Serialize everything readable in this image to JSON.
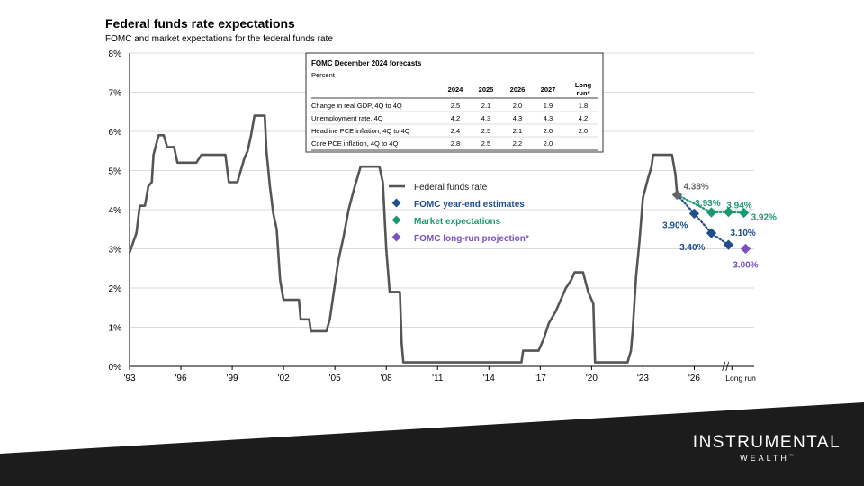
{
  "title": "Federal funds rate expectations",
  "subtitle": "FOMC and market expectations for the federal funds rate",
  "brand": {
    "name": "INSTRUMENTAL",
    "sub": "WEALTH",
    "tm": "™"
  },
  "colors": {
    "fed": "#555555",
    "fomc": "#1f4e8c",
    "market": "#1a9a6c",
    "longrun": "#7a4fc0",
    "footer": "#1c1c1c"
  },
  "chart_data": {
    "type": "line",
    "title": "Federal funds rate expectations",
    "subtitle": "FOMC and market expectations for the federal funds rate",
    "ylim": [
      0,
      8
    ],
    "xlim": [
      1993,
      2029.5
    ],
    "y_ticks": [
      "0%",
      "1%",
      "2%",
      "3%",
      "4%",
      "5%",
      "6%",
      "7%",
      "8%"
    ],
    "x_ticks": [
      {
        "v": 1993,
        "label": "'93"
      },
      {
        "v": 1996,
        "label": "'96"
      },
      {
        "v": 1999,
        "label": "'99"
      },
      {
        "v": 2002,
        "label": "'02"
      },
      {
        "v": 2005,
        "label": "'05"
      },
      {
        "v": 2008,
        "label": "'08"
      },
      {
        "v": 2011,
        "label": "'11"
      },
      {
        "v": 2014,
        "label": "'14"
      },
      {
        "v": 2017,
        "label": "'17"
      },
      {
        "v": 2020,
        "label": "'20"
      },
      {
        "v": 2023,
        "label": "'23"
      },
      {
        "v": 2026,
        "label": "'26"
      },
      {
        "v": 2028.2,
        "label": "Long run"
      }
    ],
    "legend": [
      "Federal funds rate",
      "FOMC year-end estimates",
      "Market expectations",
      "FOMC long-run projection*"
    ],
    "fed_funds": [
      [
        1993.0,
        2.9
      ],
      [
        1993.4,
        3.4
      ],
      [
        1993.6,
        4.1
      ],
      [
        1993.9,
        4.1
      ],
      [
        1994.1,
        4.6
      ],
      [
        1994.3,
        4.7
      ],
      [
        1994.4,
        5.4
      ],
      [
        1994.7,
        5.9
      ],
      [
        1995.0,
        5.9
      ],
      [
        1995.2,
        5.6
      ],
      [
        1995.6,
        5.6
      ],
      [
        1995.8,
        5.2
      ],
      [
        1996.9,
        5.2
      ],
      [
        1997.2,
        5.4
      ],
      [
        1998.6,
        5.4
      ],
      [
        1998.8,
        4.7
      ],
      [
        1999.3,
        4.7
      ],
      [
        1999.5,
        5.0
      ],
      [
        1999.7,
        5.3
      ],
      [
        1999.9,
        5.5
      ],
      [
        2000.1,
        5.9
      ],
      [
        2000.3,
        6.4
      ],
      [
        2000.9,
        6.4
      ],
      [
        2001.0,
        5.5
      ],
      [
        2001.2,
        4.6
      ],
      [
        2001.4,
        3.9
      ],
      [
        2001.6,
        3.5
      ],
      [
        2001.8,
        2.2
      ],
      [
        2002.0,
        1.7
      ],
      [
        2002.9,
        1.7
      ],
      [
        2003.0,
        1.2
      ],
      [
        2003.5,
        1.2
      ],
      [
        2003.6,
        0.9
      ],
      [
        2004.5,
        0.9
      ],
      [
        2004.7,
        1.2
      ],
      [
        2004.9,
        1.8
      ],
      [
        2005.2,
        2.7
      ],
      [
        2005.5,
        3.3
      ],
      [
        2005.8,
        4.0
      ],
      [
        2006.1,
        4.5
      ],
      [
        2006.5,
        5.1
      ],
      [
        2007.6,
        5.1
      ],
      [
        2007.8,
        4.7
      ],
      [
        2008.0,
        3.0
      ],
      [
        2008.2,
        1.9
      ],
      [
        2008.8,
        1.9
      ],
      [
        2008.9,
        0.6
      ],
      [
        2009.0,
        0.1
      ],
      [
        2015.9,
        0.1
      ],
      [
        2016.0,
        0.4
      ],
      [
        2016.9,
        0.4
      ],
      [
        2017.2,
        0.7
      ],
      [
        2017.5,
        1.1
      ],
      [
        2017.9,
        1.4
      ],
      [
        2018.2,
        1.7
      ],
      [
        2018.5,
        2.0
      ],
      [
        2018.8,
        2.2
      ],
      [
        2019.0,
        2.4
      ],
      [
        2019.5,
        2.4
      ],
      [
        2019.8,
        1.9
      ],
      [
        2020.1,
        1.6
      ],
      [
        2020.2,
        0.1
      ],
      [
        2022.1,
        0.1
      ],
      [
        2022.3,
        0.4
      ],
      [
        2022.4,
        0.9
      ],
      [
        2022.6,
        2.3
      ],
      [
        2022.8,
        3.2
      ],
      [
        2023.0,
        4.3
      ],
      [
        2023.3,
        4.8
      ],
      [
        2023.5,
        5.1
      ],
      [
        2023.6,
        5.4
      ],
      [
        2024.7,
        5.4
      ],
      [
        2024.9,
        4.9
      ],
      [
        2025.0,
        4.38
      ]
    ],
    "points": [
      {
        "series": "Federal funds rate",
        "x": 2025.0,
        "y": 4.38,
        "label": "4.38%"
      },
      {
        "series": "FOMC year-end estimates",
        "x": 2026.0,
        "y": 3.9,
        "label": "3.90%"
      },
      {
        "series": "FOMC year-end estimates",
        "x": 2027.0,
        "y": 3.4,
        "label": "3.40%"
      },
      {
        "series": "FOMC year-end estimates",
        "x": 2028.0,
        "y": 3.1,
        "label": "3.10%"
      },
      {
        "series": "Market expectations",
        "x": 2027.0,
        "y": 3.93,
        "label": "3.93%"
      },
      {
        "series": "Market expectations",
        "x": 2028.0,
        "y": 3.94,
        "label": "3.94%"
      },
      {
        "series": "Market expectations",
        "x": 2028.9,
        "y": 3.92,
        "label": "3.92%"
      },
      {
        "series": "FOMC long-run projection*",
        "x": 2029.0,
        "y": 3.0,
        "label": "3.00%"
      }
    ],
    "forecast_table": {
      "title": "FOMC December 2024 forecasts",
      "unit": "Percent",
      "columns": [
        "2024",
        "2025",
        "2026",
        "2027",
        "Long run*"
      ],
      "rows": [
        {
          "label": "Change in real GDP, 4Q to 4Q",
          "values": [
            "2.5",
            "2.1",
            "2.0",
            "1.9",
            "1.8"
          ]
        },
        {
          "label": "Unemployment rate, 4Q",
          "values": [
            "4.2",
            "4.3",
            "4.3",
            "4.3",
            "4.2"
          ]
        },
        {
          "label": "Headline PCE inflation, 4Q to 4Q",
          "values": [
            "2.4",
            "2.5",
            "2.1",
            "2.0",
            "2.0"
          ]
        },
        {
          "label": "Core PCE inflation, 4Q to 4Q",
          "values": [
            "2.8",
            "2.5",
            "2.2",
            "2.0",
            ""
          ]
        }
      ]
    }
  }
}
